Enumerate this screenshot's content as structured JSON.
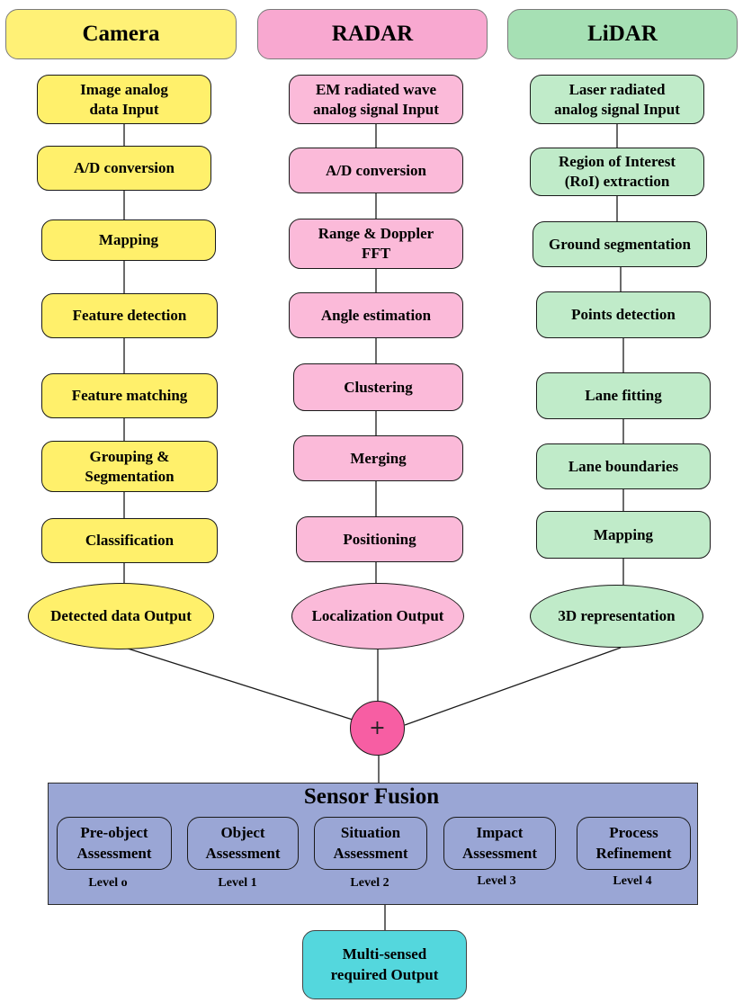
{
  "columns": [
    {
      "header": "Camera",
      "color": "#fff06b",
      "steps": [
        "Image analog\ndata Input",
        "A/D conversion",
        "Mapping",
        "Feature detection",
        "Feature matching",
        "Grouping &\nSegmentation",
        "Classification"
      ],
      "output": "Detected data Output"
    },
    {
      "header": "RADAR",
      "color": "#fbbad9",
      "steps": [
        "EM radiated wave\nanalog signal Input",
        "A/D conversion",
        "Range & Doppler\nFFT",
        "Angle estimation",
        "Clustering",
        "Merging",
        "Positioning"
      ],
      "output": "Localization Output"
    },
    {
      "header": "LiDAR",
      "color": "#c0ebc9",
      "steps": [
        "Laser radiated\nanalog signal Input",
        "Region of Interest\n(RoI) extraction",
        "Ground segmentation",
        "Points detection",
        "Lane fitting",
        "Lane boundaries",
        "Mapping"
      ],
      "output": "3D representation"
    }
  ],
  "fusion": {
    "operator": "+",
    "title": "Sensor Fusion",
    "color": "#9aa6d5",
    "levels": [
      {
        "name": "Pre-object\nAssessment",
        "label": "Level o"
      },
      {
        "name": "Object\nAssessment",
        "label": "Level 1"
      },
      {
        "name": "Situation\nAssessment",
        "label": "Level 2"
      },
      {
        "name": "Impact\nAssessment",
        "label": "Level 3"
      },
      {
        "name": "Process\nRefinement",
        "label": "Level 4"
      }
    ]
  },
  "final_output": "Multi-sensed\nrequired Output"
}
